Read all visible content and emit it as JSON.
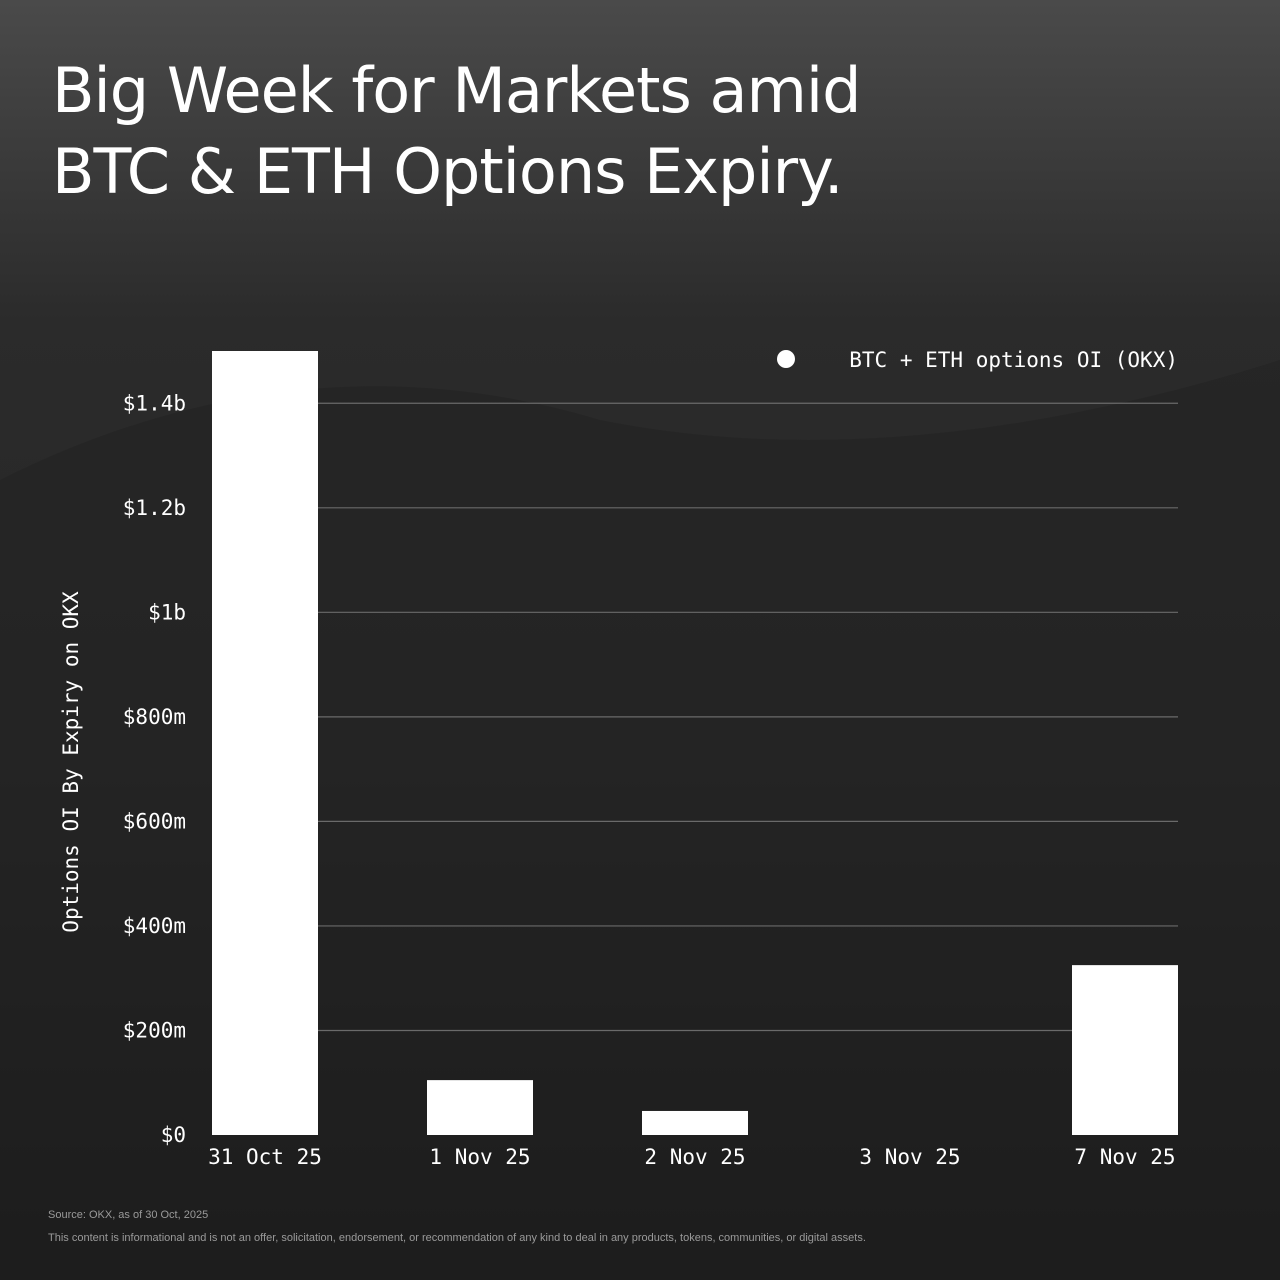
{
  "chart_data": {
    "type": "bar",
    "title": [
      "Big Week for Markets amid",
      "BTC & ETH Options Expiry."
    ],
    "y_label": "Options OI By Expiry on OKX",
    "categories": [
      "31 Oct 25",
      "1 Nov 25",
      "2 Nov 25",
      "3 Nov 25",
      "7 Nov 25"
    ],
    "series": [
      {
        "name": "BTC + ETH options OI (OKX)",
        "color": "#ffffff",
        "values": [
          1500000000,
          105000000,
          46000000,
          0,
          325000000
        ]
      }
    ],
    "ylim": [
      0,
      1500000000
    ],
    "yticks": [
      {
        "value": 0,
        "label": "$0"
      },
      {
        "value": 200000000,
        "label": "$200m"
      },
      {
        "value": 400000000,
        "label": "$400m"
      },
      {
        "value": 600000000,
        "label": "$600m"
      },
      {
        "value": 800000000,
        "label": "$800m"
      },
      {
        "value": 1000000000,
        "label": "$1b"
      },
      {
        "value": 1200000000,
        "label": "$1.2b"
      },
      {
        "value": 1400000000,
        "label": "$1.4b"
      }
    ],
    "grid": true,
    "legend": "top-right",
    "source": "Source: OKX, as of 30 Oct, 2025",
    "disclaimer": "This content is informational and is not an offer, solicitation, endorsement, or recommendation of any kind to deal in any products, tokens, communities, or digital assets."
  }
}
